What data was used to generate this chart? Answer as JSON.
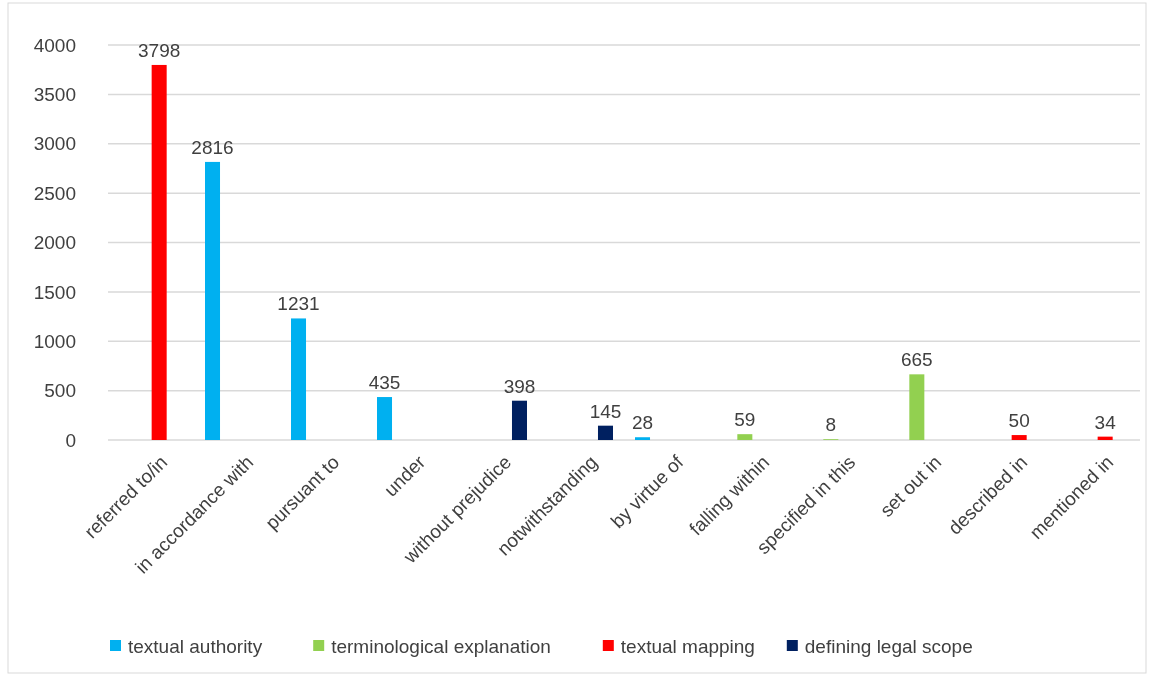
{
  "chart_data": {
    "type": "bar",
    "categories": [
      "referred to/in",
      "in accordance with",
      "pursuant to",
      "under",
      "without prejudice",
      "notwithstanding",
      "by virtue of",
      "falling within",
      "specified in this",
      "set out in",
      "described in",
      "mentioned in"
    ],
    "series": [
      {
        "name": "textual authority",
        "color": "#00b0f0",
        "values": [
          null,
          2816,
          1231,
          435,
          null,
          null,
          28,
          null,
          null,
          null,
          null,
          null
        ]
      },
      {
        "name": "terminological explanation",
        "color": "#92d050",
        "values": [
          null,
          null,
          null,
          null,
          null,
          null,
          null,
          59,
          8,
          665,
          null,
          null
        ]
      },
      {
        "name": "textual mapping",
        "color": "#ff0000",
        "values": [
          3798,
          null,
          null,
          null,
          null,
          null,
          null,
          null,
          null,
          null,
          50,
          34
        ]
      },
      {
        "name": "defining legal scope",
        "color": "#002060",
        "values": [
          null,
          null,
          null,
          null,
          398,
          145,
          null,
          null,
          null,
          null,
          null,
          null
        ]
      }
    ],
    "ylim": [
      0,
      4000
    ],
    "yticks": [
      0,
      500,
      1000,
      1500,
      2000,
      2500,
      3000,
      3500,
      4000
    ],
    "grid": "y",
    "legend": "bottom",
    "data_labels": true
  }
}
